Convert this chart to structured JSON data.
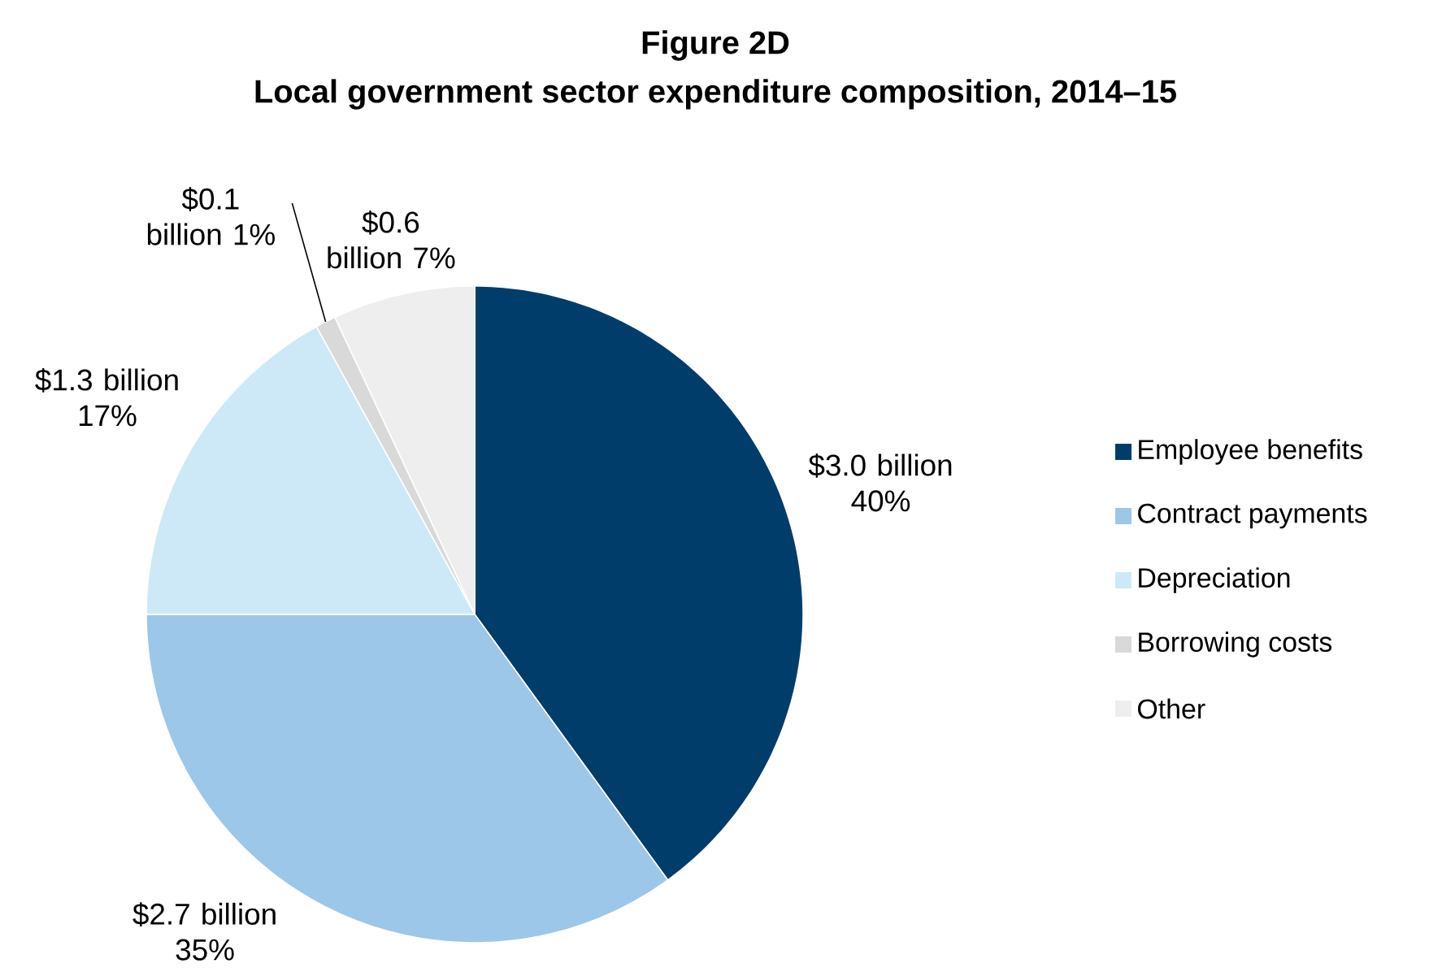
{
  "chart_data": {
    "type": "pie",
    "title": "Figure 2D",
    "subtitle": "Local government sector expenditure composition, 2014–15",
    "categories": [
      "Employee benefits",
      "Contract payments",
      "Depreciation",
      "Borrowing costs",
      "Other"
    ],
    "values": [
      40,
      35,
      17,
      1,
      7
    ],
    "value_labels": [
      "$3.0 billion 40%",
      "$2.7 billion 35%",
      "$1.3 billion 17%",
      "$0.1 billion 1%",
      "$0.6 billion 7%"
    ],
    "colors": [
      "#003d6b",
      "#9dc7e8",
      "#cde9f8",
      "#d9d9d9",
      "#eeeeee"
    ],
    "legend": "right"
  }
}
